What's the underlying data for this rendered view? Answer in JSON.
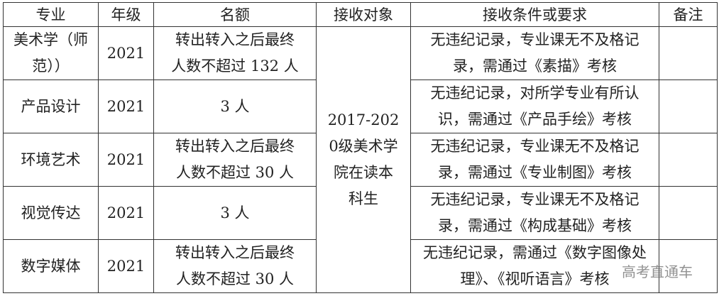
{
  "headers": [
    "专业",
    "年级",
    "名额",
    "接收对象",
    "接收条件或要求",
    "备注"
  ],
  "rows": [
    {
      "major": "美术学（师范））",
      "grade": "2021",
      "quota": "转出转入之后最终人数不超过 132 人",
      "requirement": "无违纪记录，专业课无不及格记录，需通过《素描》考核",
      "note": ""
    },
    {
      "major": "产品设计",
      "grade": "2021",
      "quota": "3 人",
      "requirement": "无违纪记录，对所学专业有所认识，需通过《产品手绘》考核",
      "note": ""
    },
    {
      "major": "环境艺术",
      "grade": "2021",
      "quota": "转出转入之后最终人数不超过 30 人",
      "requirement": "无违纪记录，专业课无不及格记录，需通过《专业制图》考核",
      "note": ""
    },
    {
      "major": "视觉传达",
      "grade": "2021",
      "quota": "3 人",
      "requirement": "无违纪记录，专业课无不及格记录，需通过《构成基础》考核",
      "note": ""
    },
    {
      "major": "数字媒体",
      "grade": "2021",
      "quota": "转出转入之后最终人数不超过 30 人",
      "requirement": "无违纪记录，需通过《数字图像处理》、《视听语言》考核",
      "note": ""
    }
  ],
  "target": "2017-2020级美术学院在读本科生",
  "watermark": "高考直通车"
}
